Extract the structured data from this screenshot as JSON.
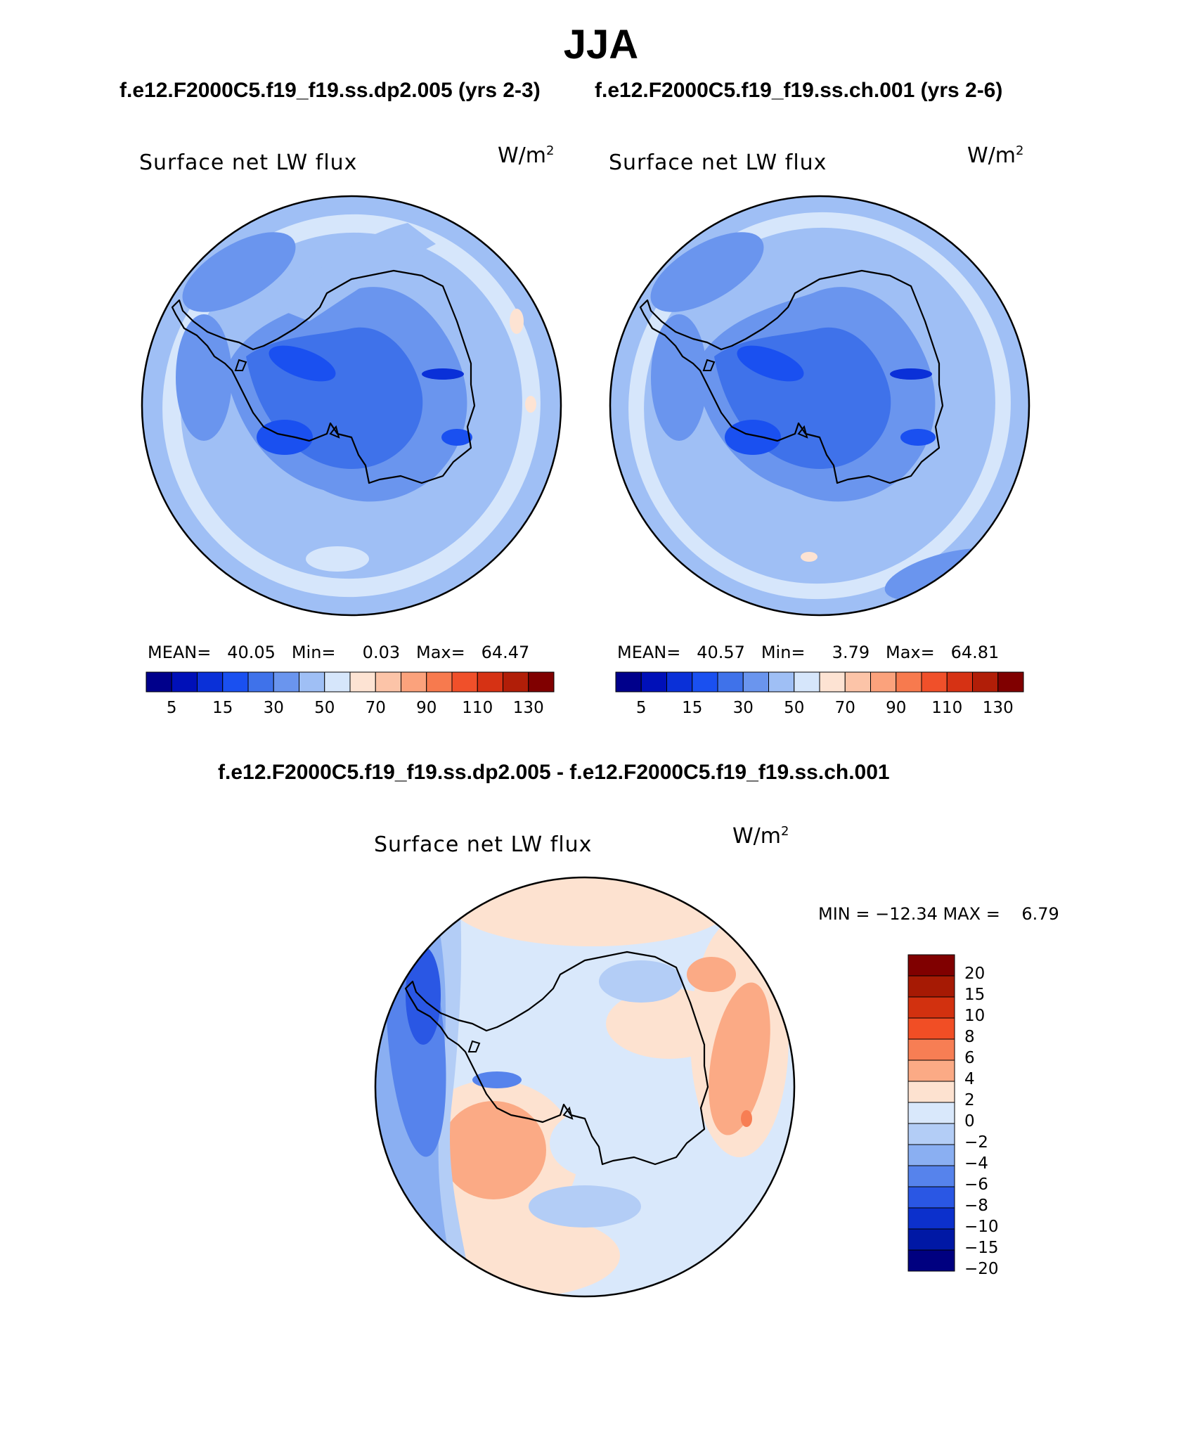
{
  "header": {
    "season": "JJA",
    "case_left": "f.e12.F2000C5.f19_f19.ss.dp2.005 (yrs 2-3)",
    "case_right": "f.e12.F2000C5.f19_f19.ss.ch.001 (yrs 2-6)"
  },
  "panels": [
    {
      "variable": "Surface net LW flux",
      "units_base": "W/m",
      "units_exp": "2",
      "stats_line": "MEAN=   40.05   Min=     0.03   Max=   64.47"
    },
    {
      "variable": "Surface net LW flux",
      "units_base": "W/m",
      "units_exp": "2",
      "stats_line": "MEAN=   40.57   Min=     3.79   Max=   64.81"
    }
  ],
  "colorbar_top": {
    "colors": [
      "#00008b",
      "#0010b8",
      "#0a30d8",
      "#1a50f0",
      "#3f72ea",
      "#6a95ee",
      "#9fbff5",
      "#d6e6fb",
      "#fde3d3",
      "#fcc4a8",
      "#fba27c",
      "#f77a4e",
      "#f0502a",
      "#d63214",
      "#b11e08",
      "#800000"
    ],
    "tick_labels": [
      "5",
      "15",
      "30",
      "50",
      "70",
      "90",
      "110",
      "130"
    ]
  },
  "difference": {
    "title": "f.e12.F2000C5.f19_f19.ss.dp2.005 - f.e12.F2000C5.f19_f19.ss.ch.001",
    "variable": "Surface net LW flux",
    "units_base": "W/m",
    "units_exp": "2",
    "minmax_line": "MIN = −12.34 MAX =    6.79",
    "colorbar": {
      "colors": [
        "#800000",
        "#a61a04",
        "#d2310f",
        "#f14e25",
        "#f77e54",
        "#fbaa85",
        "#fde2d0",
        "#d9e8fb",
        "#b3cdf6",
        "#8aaff2",
        "#5683ec",
        "#2a57e4",
        "#0c30cc",
        "#0018a5",
        "#000080"
      ],
      "tick_labels": [
        "20",
        "15",
        "10",
        "8",
        "6",
        "4",
        "2",
        "0",
        "−2",
        "−4",
        "−6",
        "−8",
        "−10",
        "−15",
        "−20"
      ]
    }
  },
  "map_colors": {
    "ocean_base": "#9fbff5",
    "ocean_mid": "#6a95ee",
    "land_mid": "#3f72ea",
    "land_deep": "#1a50f0",
    "light_band": "#d6e6fb",
    "warm_spot": "#fde3d3",
    "coast_line": "#000000",
    "diff_base": "#d9e8fb",
    "diff_warm1": "#fde2d0",
    "diff_warm2": "#fbaa85",
    "diff_warm3": "#f77e54",
    "diff_cold1": "#b3cdf6",
    "diff_cold2": "#8aaff2",
    "diff_cold3": "#5683ec",
    "diff_cold4": "#2a57e4"
  }
}
